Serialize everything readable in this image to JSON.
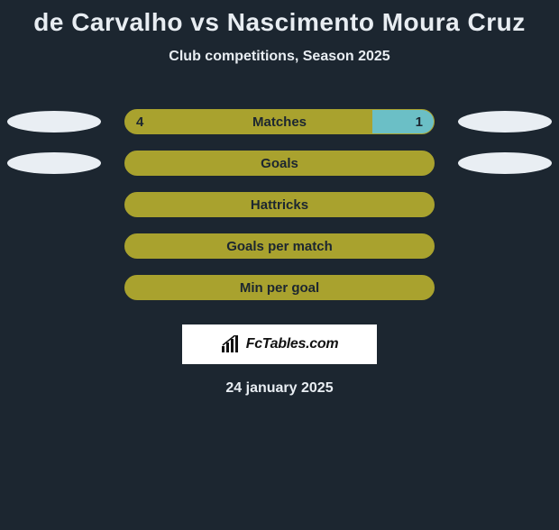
{
  "title": "de Carvalho vs Nascimento Moura Cruz",
  "subtitle": "Club competitions, Season 2025",
  "date": "24 january 2025",
  "colors": {
    "background": "#1c2630",
    "bar_base": "#a9a22e",
    "bar_accent": "#6bbfc6",
    "ellipse": "#e9eef3",
    "text_light": "#e8edf2",
    "text_dark": "#1c2630"
  },
  "brand": {
    "label": "FcTables.com"
  },
  "rows": [
    {
      "key": "matches",
      "label": "Matches",
      "left_value": "4",
      "right_value": "1",
      "left_pct": 80,
      "right_pct": 20,
      "show_left_ellipse": true,
      "show_right_ellipse": true,
      "show_values": true
    },
    {
      "key": "goals",
      "label": "Goals",
      "left_value": "",
      "right_value": "",
      "left_pct": 100,
      "right_pct": 0,
      "show_left_ellipse": true,
      "show_right_ellipse": true,
      "show_values": false
    },
    {
      "key": "hattricks",
      "label": "Hattricks",
      "left_value": "",
      "right_value": "",
      "left_pct": 100,
      "right_pct": 0,
      "show_left_ellipse": false,
      "show_right_ellipse": false,
      "show_values": false
    },
    {
      "key": "goals-per-match",
      "label": "Goals per match",
      "left_value": "",
      "right_value": "",
      "left_pct": 100,
      "right_pct": 0,
      "show_left_ellipse": false,
      "show_right_ellipse": false,
      "show_values": false
    },
    {
      "key": "min-per-goal",
      "label": "Min per goal",
      "left_value": "",
      "right_value": "",
      "left_pct": 100,
      "right_pct": 0,
      "show_left_ellipse": false,
      "show_right_ellipse": false,
      "show_values": false
    }
  ]
}
